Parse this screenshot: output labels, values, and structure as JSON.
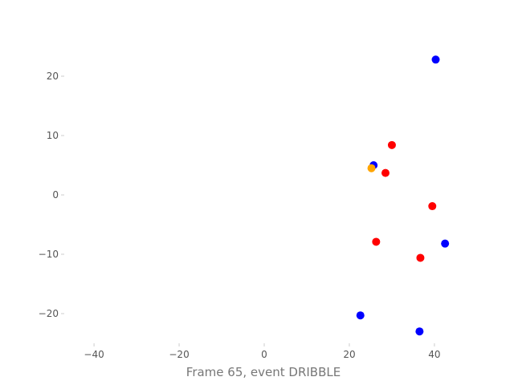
{
  "chart_data": {
    "type": "scatter",
    "title": "",
    "xlabel": "Frame 65, event DRIBBLE",
    "ylabel": "",
    "xlim": [
      -47,
      47
    ],
    "ylim": [
      -25,
      25
    ],
    "x_ticks": [
      -40,
      -20,
      0,
      20,
      40
    ],
    "y_ticks": [
      -20,
      -10,
      0,
      10,
      20
    ],
    "x_tick_labels": [
      "−40",
      "−20",
      "0",
      "20",
      "40"
    ],
    "y_tick_labels": [
      "−20",
      "−10",
      "0",
      "10",
      "20"
    ],
    "grid": false,
    "series": [
      {
        "color": "#0000ff",
        "points": [
          {
            "x": 40.3,
            "y": 22.8
          },
          {
            "x": 25.7,
            "y": 5.0
          },
          {
            "x": 42.5,
            "y": -8.2
          },
          {
            "x": 22.6,
            "y": -20.3
          },
          {
            "x": 36.5,
            "y": -23.0
          }
        ]
      },
      {
        "color": "#ff0000",
        "points": [
          {
            "x": 30.0,
            "y": 8.4
          },
          {
            "x": 28.5,
            "y": 3.7
          },
          {
            "x": 39.5,
            "y": -1.9
          },
          {
            "x": 26.3,
            "y": -7.9
          },
          {
            "x": 36.7,
            "y": -10.6
          }
        ]
      },
      {
        "color": "#ffa500",
        "points": [
          {
            "x": 25.2,
            "y": 4.5
          }
        ]
      }
    ]
  }
}
